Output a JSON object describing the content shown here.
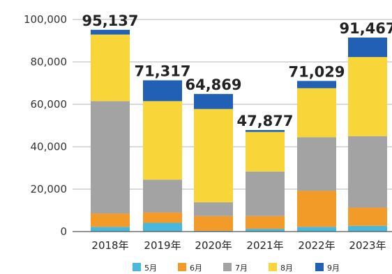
{
  "chart_data": {
    "type": "bar",
    "stacked": true,
    "categories": [
      "2018年",
      "2019年",
      "2020年",
      "2021年",
      "2022年",
      "2023年"
    ],
    "totals": [
      "95,137",
      "71,317",
      "64,869",
      "47,877",
      "71,029",
      "91,467"
    ],
    "total_values": [
      95137,
      71317,
      64869,
      47877,
      71029,
      91467
    ],
    "series": [
      {
        "name": "5月",
        "color": "#4ab8dc",
        "values": [
          2200,
          4100,
          400,
          1300,
          2200,
          2700
        ]
      },
      {
        "name": "6月",
        "color": "#f29b28",
        "values": [
          6300,
          4900,
          6900,
          6000,
          17000,
          8600
        ]
      },
      {
        "name": "7月",
        "color": "#a3a3a3",
        "values": [
          53000,
          15500,
          6500,
          21000,
          25300,
          33700
        ]
      },
      {
        "name": "8月",
        "color": "#f8d63a",
        "values": [
          31400,
          37000,
          44000,
          18700,
          23100,
          37300
        ]
      },
      {
        "name": "9月",
        "color": "#2160b5",
        "values": [
          2237,
          9817,
          7069,
          877,
          3429,
          9167
        ]
      }
    ],
    "y_ticks": [
      {
        "value": 0,
        "label": "0"
      },
      {
        "value": 20000,
        "label": "20,000"
      },
      {
        "value": 40000,
        "label": "40,000"
      },
      {
        "value": 60000,
        "label": "60,000"
      },
      {
        "value": 80000,
        "label": "80,000"
      },
      {
        "value": 100000,
        "label": "100,000"
      }
    ],
    "ylim": [
      0,
      100000
    ],
    "grid": true,
    "legend_position": "bottom",
    "title": "",
    "xlabel": "",
    "ylabel": ""
  }
}
